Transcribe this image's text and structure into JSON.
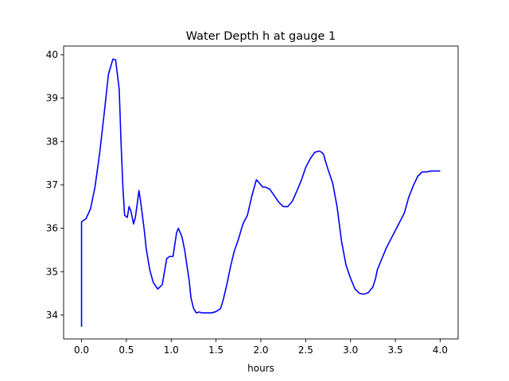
{
  "chart_data": {
    "type": "line",
    "title": "Water Depth h at gauge 1",
    "xlabel": "hours",
    "ylabel": "",
    "xlim": [
      -0.2,
      4.2
    ],
    "ylim": [
      33.45,
      40.2
    ],
    "xticks": [
      0.0,
      0.5,
      1.0,
      1.5,
      2.0,
      2.5,
      3.0,
      3.5,
      4.0
    ],
    "xtick_labels": [
      "0.0",
      "0.5",
      "1.0",
      "1.5",
      "2.0",
      "2.5",
      "3.0",
      "3.5",
      "4.0"
    ],
    "yticks": [
      34,
      35,
      36,
      37,
      38,
      39,
      40
    ],
    "ytick_labels": [
      "34",
      "35",
      "36",
      "37",
      "38",
      "39",
      "40"
    ],
    "grid": false,
    "series": [
      {
        "color": "#0000ff",
        "x": [
          0.0,
          0.0,
          0.05,
          0.1,
          0.15,
          0.2,
          0.25,
          0.3,
          0.35,
          0.38,
          0.42,
          0.44,
          0.46,
          0.48,
          0.51,
          0.53,
          0.55,
          0.58,
          0.6,
          0.62,
          0.64,
          0.66,
          0.7,
          0.72,
          0.76,
          0.8,
          0.85,
          0.9,
          0.95,
          0.98,
          1.02,
          1.06,
          1.08,
          1.12,
          1.15,
          1.2,
          1.22,
          1.25,
          1.28,
          1.31,
          1.35,
          1.4,
          1.45,
          1.5,
          1.55,
          1.58,
          1.62,
          1.66,
          1.7,
          1.75,
          1.8,
          1.85,
          1.9,
          1.95,
          1.98,
          2.0,
          2.02,
          2.05,
          2.1,
          2.15,
          2.2,
          2.25,
          2.3,
          2.35,
          2.4,
          2.45,
          2.5,
          2.55,
          2.6,
          2.65,
          2.68,
          2.7,
          2.72,
          2.75,
          2.8,
          2.85,
          2.9,
          2.95,
          3.0,
          3.05,
          3.1,
          3.15,
          3.2,
          3.25,
          3.28,
          3.3,
          3.35,
          3.4,
          3.45,
          3.5,
          3.55,
          3.6,
          3.65,
          3.7,
          3.75,
          3.8,
          3.85,
          3.9,
          3.95,
          3.97,
          4.0
        ],
        "y": [
          33.73,
          36.15,
          36.22,
          36.45,
          36.95,
          37.7,
          38.6,
          39.55,
          39.9,
          39.88,
          39.2,
          38.0,
          37.0,
          36.3,
          36.25,
          36.5,
          36.4,
          36.1,
          36.25,
          36.55,
          36.87,
          36.6,
          35.95,
          35.55,
          35.05,
          34.75,
          34.6,
          34.7,
          35.3,
          35.35,
          35.35,
          35.9,
          36.0,
          35.8,
          35.5,
          34.8,
          34.4,
          34.15,
          34.05,
          34.07,
          34.05,
          34.05,
          34.05,
          34.08,
          34.15,
          34.35,
          34.7,
          35.1,
          35.45,
          35.75,
          36.1,
          36.3,
          36.75,
          37.12,
          37.05,
          37.0,
          36.95,
          36.95,
          36.9,
          36.75,
          36.6,
          36.5,
          36.5,
          36.62,
          36.85,
          37.1,
          37.4,
          37.6,
          37.75,
          37.78,
          37.75,
          37.7,
          37.55,
          37.35,
          37.05,
          36.5,
          35.7,
          35.15,
          34.85,
          34.6,
          34.5,
          34.48,
          34.52,
          34.65,
          34.85,
          35.05,
          35.3,
          35.55,
          35.75,
          35.95,
          36.15,
          36.35,
          36.72,
          36.98,
          37.2,
          37.3,
          37.3,
          37.32,
          37.32,
          37.32,
          37.32
        ]
      }
    ]
  }
}
